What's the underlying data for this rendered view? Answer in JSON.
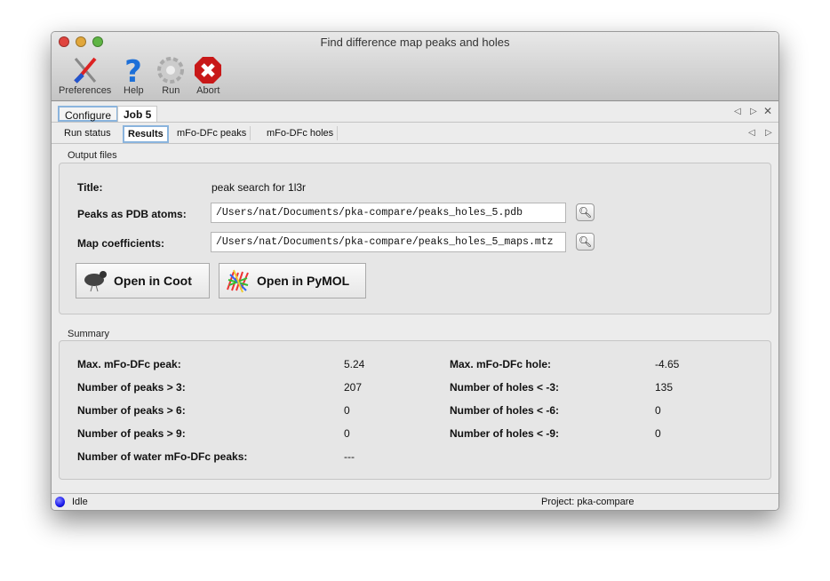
{
  "window": {
    "title": "Find difference map peaks and holes"
  },
  "toolbar": [
    {
      "label": "Preferences",
      "icon": "tools-icon"
    },
    {
      "label": "Help",
      "icon": "help-icon"
    },
    {
      "label": "Run",
      "icon": "gear-icon"
    },
    {
      "label": "Abort",
      "icon": "abort-icon"
    }
  ],
  "tabs": {
    "configure": "Configure",
    "job": "Job 5"
  },
  "subtabs": [
    "Run status",
    "Results",
    "mFo-DFc peaks",
    "mFo-DFc holes"
  ],
  "output": {
    "group": "Output files",
    "title_label": "Title:",
    "title_value": "peak search for 1l3r",
    "pdb_label": "Peaks as PDB atoms:",
    "pdb_value": "/Users/nat/Documents/pka-compare/peaks_holes_5.pdb",
    "map_label": "Map coefficients:",
    "map_value": "/Users/nat/Documents/pka-compare/peaks_holes_5_maps.mtz",
    "coot": "Open in Coot",
    "pymol": "Open in PyMOL"
  },
  "summary": {
    "group": "Summary",
    "left": [
      {
        "label": "Max. mFo-DFc peak:",
        "value": "5.24"
      },
      {
        "label": "Number of peaks > 3:",
        "value": "207"
      },
      {
        "label": "Number of peaks > 6:",
        "value": "0"
      },
      {
        "label": "Number of peaks > 9:",
        "value": "0"
      },
      {
        "label": "Number of water mFo-DFc peaks:",
        "value": "---"
      }
    ],
    "right": [
      {
        "label": "Max. mFo-DFc hole:",
        "value": "-4.65"
      },
      {
        "label": "Number of holes < -3:",
        "value": "135"
      },
      {
        "label": "Number of holes < -6:",
        "value": "0"
      },
      {
        "label": "Number of holes < -9:",
        "value": "0"
      }
    ]
  },
  "status": {
    "state": "Idle",
    "project": "Project: pka-compare",
    "indicator_color": "#1a1aee"
  }
}
